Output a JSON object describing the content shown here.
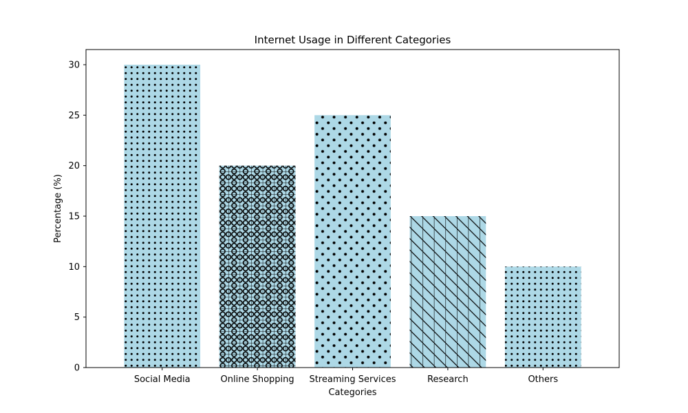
{
  "chart_data": {
    "type": "bar",
    "title": "Internet Usage in Different Categories",
    "xlabel": "Categories",
    "ylabel": "Percentage (%)",
    "categories": [
      "Social Media",
      "Online Shopping",
      "Streaming Services",
      "Research",
      "Others"
    ],
    "values": [
      30,
      20,
      25,
      15,
      10
    ],
    "hatches": [
      "dense-dots",
      "grid-circles",
      "sparse-dots",
      "grid-diagonal",
      "dense-dots"
    ],
    "ylim": [
      0,
      31.5
    ],
    "yticks": [
      0,
      5,
      10,
      15,
      20,
      25,
      30
    ],
    "bar_color": "#add8e6",
    "hatch_color": "#000000",
    "grid": false,
    "legend": "none"
  }
}
